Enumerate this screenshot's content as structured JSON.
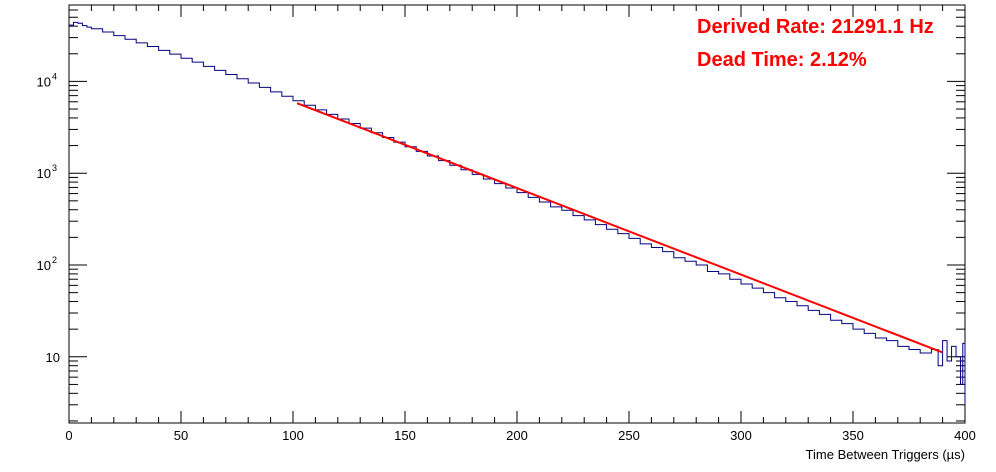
{
  "chart_data": {
    "type": "line",
    "title": "",
    "xlabel": "Time Between Triggers (µs)",
    "ylabel": "",
    "xlim": [
      0,
      400
    ],
    "ylim": [
      1.9,
      68000
    ],
    "y_scale": "log",
    "grid": false,
    "legend": "none",
    "x_ticks": [
      "0",
      "50",
      "100",
      "150",
      "200",
      "250",
      "300",
      "350",
      "400"
    ],
    "y_tick_labels": [
      {
        "value": 10,
        "base": "10",
        "exp": ""
      },
      {
        "value": 100,
        "base": "10",
        "exp": "2"
      },
      {
        "value": 1000,
        "base": "10",
        "exp": "3"
      },
      {
        "value": 10000,
        "base": "10",
        "exp": "4"
      }
    ],
    "series": [
      {
        "kind": "histogram",
        "color": "#000080",
        "points": [
          [
            0,
            41000
          ],
          [
            2,
            44000
          ],
          [
            4,
            43000
          ],
          [
            6,
            40500
          ],
          [
            8,
            39000
          ],
          [
            10,
            37500
          ],
          [
            15,
            34500
          ],
          [
            20,
            31500
          ],
          [
            25,
            28800
          ],
          [
            30,
            26300
          ],
          [
            35,
            24000
          ],
          [
            40,
            21800
          ],
          [
            45,
            19800
          ],
          [
            50,
            17900
          ],
          [
            55,
            16200
          ],
          [
            60,
            14600
          ],
          [
            65,
            13200
          ],
          [
            70,
            11900
          ],
          [
            75,
            10700
          ],
          [
            80,
            9600
          ],
          [
            85,
            8600
          ],
          [
            90,
            7700
          ],
          [
            95,
            6900
          ],
          [
            100,
            6150
          ],
          [
            105,
            5500
          ],
          [
            110,
            4900
          ],
          [
            115,
            4380
          ],
          [
            120,
            3900
          ],
          [
            125,
            3480
          ],
          [
            130,
            3100
          ],
          [
            135,
            2760
          ],
          [
            140,
            2450
          ],
          [
            145,
            2180
          ],
          [
            150,
            1940
          ],
          [
            155,
            1730
          ],
          [
            160,
            1540
          ],
          [
            165,
            1370
          ],
          [
            170,
            1220
          ],
          [
            175,
            1090
          ],
          [
            180,
            970
          ],
          [
            185,
            865
          ],
          [
            190,
            770
          ],
          [
            195,
            690
          ],
          [
            200,
            615
          ],
          [
            205,
            545
          ],
          [
            210,
            485
          ],
          [
            215,
            430
          ],
          [
            220,
            395
          ],
          [
            225,
            345
          ],
          [
            230,
            310
          ],
          [
            235,
            275
          ],
          [
            240,
            245
          ],
          [
            245,
            220
          ],
          [
            250,
            195
          ],
          [
            255,
            170
          ],
          [
            260,
            155
          ],
          [
            265,
            140
          ],
          [
            270,
            120
          ],
          [
            275,
            110
          ],
          [
            280,
            100
          ],
          [
            285,
            85
          ],
          [
            290,
            80
          ],
          [
            295,
            70
          ],
          [
            300,
            62
          ],
          [
            305,
            56
          ],
          [
            310,
            50
          ],
          [
            315,
            44
          ],
          [
            320,
            40
          ],
          [
            325,
            36
          ],
          [
            330,
            32
          ],
          [
            335,
            29
          ],
          [
            340,
            25
          ],
          [
            345,
            23
          ],
          [
            350,
            20
          ],
          [
            355,
            18
          ],
          [
            360,
            16
          ],
          [
            365,
            15
          ],
          [
            370,
            13
          ],
          [
            375,
            12
          ],
          [
            380,
            11
          ],
          [
            385,
            12
          ],
          [
            388,
            8
          ],
          [
            390,
            15
          ],
          [
            392,
            9
          ],
          [
            394,
            13
          ],
          [
            396,
            10
          ],
          [
            398,
            5
          ],
          [
            399,
            14
          ],
          [
            400,
            3
          ]
        ]
      },
      {
        "kind": "fit",
        "color": "#ff0000",
        "x_start": 101.8,
        "y_start": 5800,
        "x_end": 389.8,
        "y_end": 11.2
      }
    ],
    "annotations": [
      {
        "text": "Derived Rate: 21291.1 Hz"
      },
      {
        "text": "Dead Time: 2.12%"
      }
    ]
  }
}
